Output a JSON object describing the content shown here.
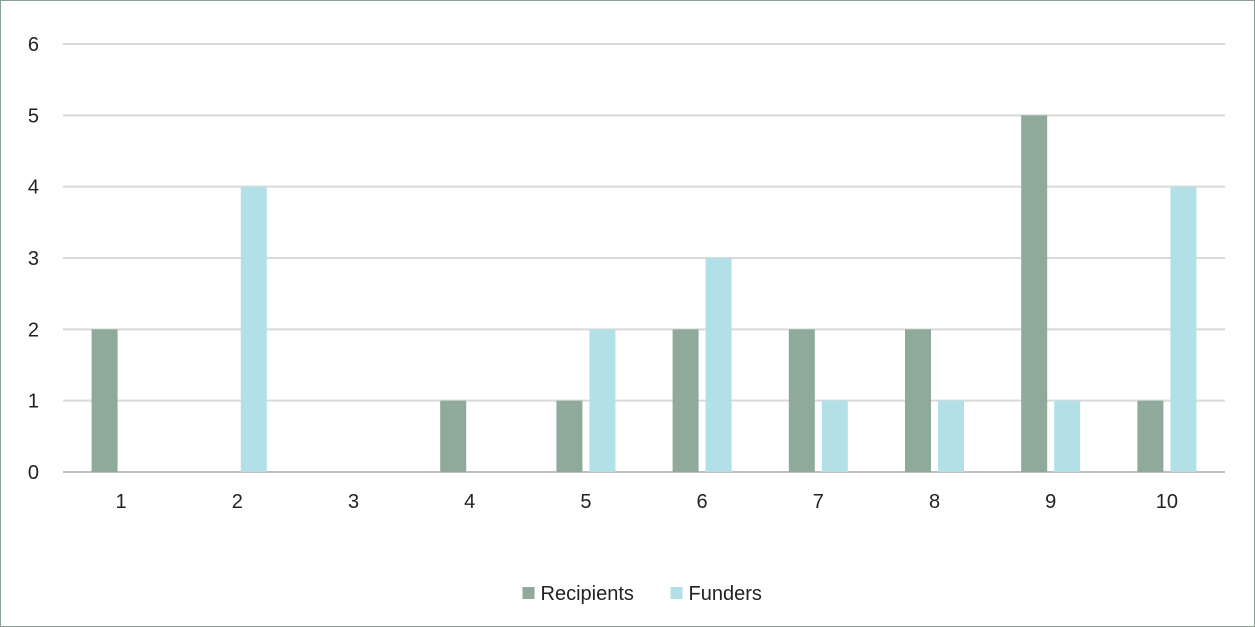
{
  "chart_data": {
    "type": "bar",
    "categories": [
      "1",
      "2",
      "3",
      "4",
      "5",
      "6",
      "7",
      "8",
      "9",
      "10"
    ],
    "series": [
      {
        "name": "Recipients",
        "color": "#8faa9a",
        "values": [
          2,
          0,
          0,
          1,
          1,
          2,
          2,
          2,
          5,
          1
        ]
      },
      {
        "name": "Funders",
        "color": "#b3e0e6",
        "values": [
          0,
          4,
          0,
          0,
          2,
          3,
          1,
          1,
          1,
          4
        ]
      }
    ],
    "ylim": [
      0,
      6
    ],
    "yticks": [
      "0",
      "1",
      "2",
      "3",
      "4",
      "5",
      "6"
    ],
    "grid": true,
    "legend_position": "bottom"
  }
}
